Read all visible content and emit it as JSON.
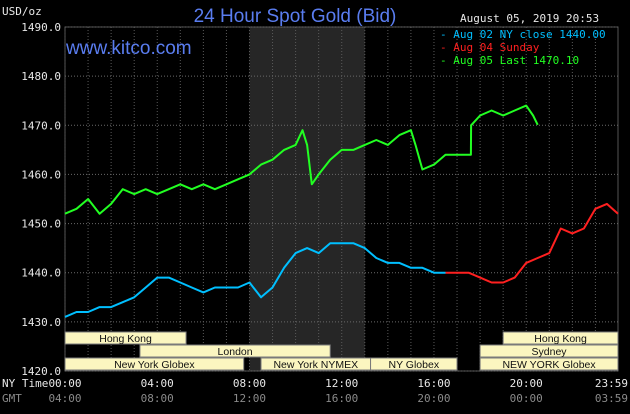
{
  "chart_data": {
    "type": "line",
    "title": "24 Hour Spot Gold (Bid)",
    "brand": "www.kitco.com",
    "timestamp": "August 05, 2019 20:53",
    "ylabel": "USD/oz",
    "ylim": [
      1420,
      1490
    ],
    "y_ticks": [
      "1490.0",
      "1480.0",
      "1470.0",
      "1460.0",
      "1450.0",
      "1440.0",
      "1430.0",
      "1420.0"
    ],
    "x_row_label_ny": "NY Time",
    "x_row_label_gmt": "GMT",
    "x_ticks_ny": [
      "00:00",
      "04:00",
      "08:00",
      "12:00",
      "16:00",
      "20:00",
      "23:59"
    ],
    "x_ticks_gmt": [
      "04:00",
      "08:00",
      "12:00",
      "16:00",
      "20:00",
      "00:00",
      "03:59"
    ],
    "grid": true,
    "legend_position": "top-right",
    "legend": [
      {
        "label": "- Aug 02 NY close 1440.00",
        "color": "#00bfff"
      },
      {
        "label": "- Aug 04 Sunday",
        "color": "#ff2020"
      },
      {
        "label": "- Aug 05 Last 1470.10",
        "color": "#22ff22"
      }
    ],
    "series": [
      {
        "name": "Aug 05",
        "color": "#22ff22",
        "x": [
          0,
          0.5,
          1.0,
          1.5,
          2.0,
          2.5,
          3.0,
          3.5,
          4.0,
          4.5,
          5.0,
          5.5,
          6.0,
          6.5,
          7.0,
          7.5,
          8.0,
          8.5,
          9.0,
          9.5,
          10.0,
          10.3,
          10.5,
          10.7,
          11.0,
          11.5,
          12.0,
          12.5,
          13.0,
          13.5,
          14.0,
          14.5,
          15.0,
          15.2,
          15.5,
          16.0,
          16.5,
          17.0,
          17.6,
          17.61,
          18.0,
          18.5,
          19.0,
          19.5,
          20.0,
          20.3,
          20.5
        ],
        "y": [
          1452,
          1453,
          1455,
          1452,
          1454,
          1457,
          1456,
          1457,
          1456,
          1457,
          1458,
          1457,
          1458,
          1457,
          1458,
          1459,
          1460,
          1462,
          1463,
          1465,
          1466,
          1469,
          1466,
          1458,
          1460,
          1463,
          1465,
          1465,
          1466,
          1467,
          1466,
          1468,
          1469,
          1466,
          1461,
          1462,
          1464,
          1464,
          1464,
          1470,
          1472,
          1473,
          1472,
          1473,
          1474,
          1472,
          1470.1
        ]
      },
      {
        "name": "Aug 02",
        "color": "#00bfff",
        "x": [
          0,
          0.5,
          1.0,
          1.5,
          2.0,
          2.5,
          3.0,
          3.5,
          4.0,
          4.5,
          5.0,
          5.5,
          6.0,
          6.5,
          7.0,
          7.5,
          8.0,
          8.5,
          9.0,
          9.5,
          10.0,
          10.5,
          11.0,
          11.5,
          12.0,
          12.5,
          13.0,
          13.5,
          14.0,
          14.5,
          15.0,
          15.5,
          16.0,
          16.5
        ],
        "y": [
          1431,
          1432,
          1432,
          1433,
          1433,
          1434,
          1435,
          1437,
          1439,
          1439,
          1438,
          1437,
          1436,
          1437,
          1437,
          1437,
          1438,
          1435,
          1437,
          1441,
          1444,
          1445,
          1444,
          1446,
          1446,
          1446,
          1445,
          1443,
          1442,
          1442,
          1441,
          1441,
          1440,
          1440
        ]
      },
      {
        "name": "Aug 04",
        "color": "#ff2020",
        "x": [
          16.5,
          17.0,
          17.5,
          18.0,
          18.5,
          19.0,
          19.5,
          20.0,
          20.5,
          21.0,
          21.5,
          22.0,
          22.5,
          23.0,
          23.5,
          23.98
        ],
        "y": [
          1440,
          1440,
          1440,
          1439,
          1438,
          1438,
          1439,
          1442,
          1443,
          1444,
          1449,
          1448,
          1449,
          1453,
          1454,
          1452
        ]
      }
    ],
    "sessions": [
      {
        "name": "Hong Kong",
        "row": 0,
        "start": 0,
        "end": 5.25
      },
      {
        "name": "London",
        "row": 1,
        "start": 3.25,
        "end": 11.5
      },
      {
        "name": "New York Globex",
        "row": 2,
        "start": 0,
        "end": 7.75
      },
      {
        "name": "New York NYMEX",
        "row": 2,
        "start": 8.5,
        "end": 13.25
      },
      {
        "name": "NY Globex",
        "row": 2,
        "start": 13.25,
        "end": 17.0
      },
      {
        "name": "Hong Kong",
        "row": 0,
        "start": 19.0,
        "end": 23.98
      },
      {
        "name": "Sydney",
        "row": 1,
        "start": 18.0,
        "end": 23.98
      },
      {
        "name": "NEW YORK Globex",
        "row": 2,
        "start": 18.0,
        "end": 23.98
      }
    ],
    "highlight": {
      "start": 8.0,
      "end": 13.0
    }
  }
}
